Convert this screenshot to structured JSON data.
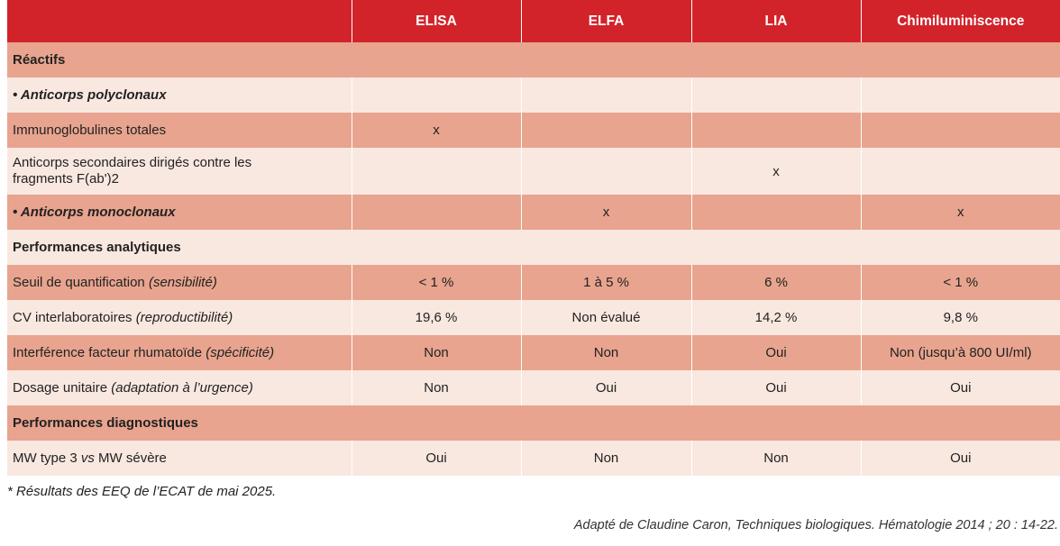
{
  "table": {
    "header": [
      "",
      "ELISA",
      "ELFA",
      "LIA",
      "Chimiluminiscence"
    ],
    "section_reactifs": "Réactifs",
    "poly": "• Anticorps polyclonaux",
    "row_ig": {
      "label": "Immunoglobulines totales",
      "values": [
        "x",
        "",
        "",
        ""
      ]
    },
    "row_fab": {
      "label": "Anticorps secondaires dirigés contre les fragments F(ab')2",
      "values": [
        "",
        "",
        "x",
        ""
      ]
    },
    "row_mono": {
      "label": "• Anticorps monoclonaux",
      "values": [
        "",
        "x",
        "",
        "x"
      ]
    },
    "section_analytiques": "Performances analytiques",
    "row_seuil": {
      "label_main": "Seuil de quantification",
      "label_paren": "(sensibilité)",
      "values": [
        "< 1 %",
        "1 à 5 %",
        "6 %",
        "< 1 %"
      ]
    },
    "row_cv": {
      "label_main": "CV interlaboratoires",
      "label_paren": "(reproductibilité)",
      "values": [
        "19,6 %",
        "Non évalué",
        "14,2 %",
        "9,8 %"
      ]
    },
    "row_fr": {
      "label_main": "Interférence facteur rhumatoïde",
      "label_paren": "(spécificité)",
      "values": [
        "Non",
        "Non",
        "Oui",
        "Non (jusqu’à 800 UI/ml)"
      ]
    },
    "row_dosage": {
      "label_main": "Dosage unitaire",
      "label_paren": "(adaptation à l’urgence)",
      "values": [
        "Non",
        "Oui",
        "Oui",
        "Oui"
      ]
    },
    "section_diagnostiques": "Performances diagnostiques",
    "row_mw": {
      "label_pre": "MW type 3",
      "label_vs": "vs",
      "label_post": "MW sévère",
      "values": [
        "Oui",
        "Non",
        "Non",
        "Oui"
      ]
    }
  },
  "footnote": "* Résultats des EEQ de l’ECAT de mai 2025.",
  "source": "Adapté de Claudine Caron, Techniques biologiques. Hématologie 2014 ; 20 : 14-22.",
  "colors": {
    "header": "#d2232a",
    "row_dark": "#e8a48e",
    "row_light": "#f9e8e0"
  }
}
